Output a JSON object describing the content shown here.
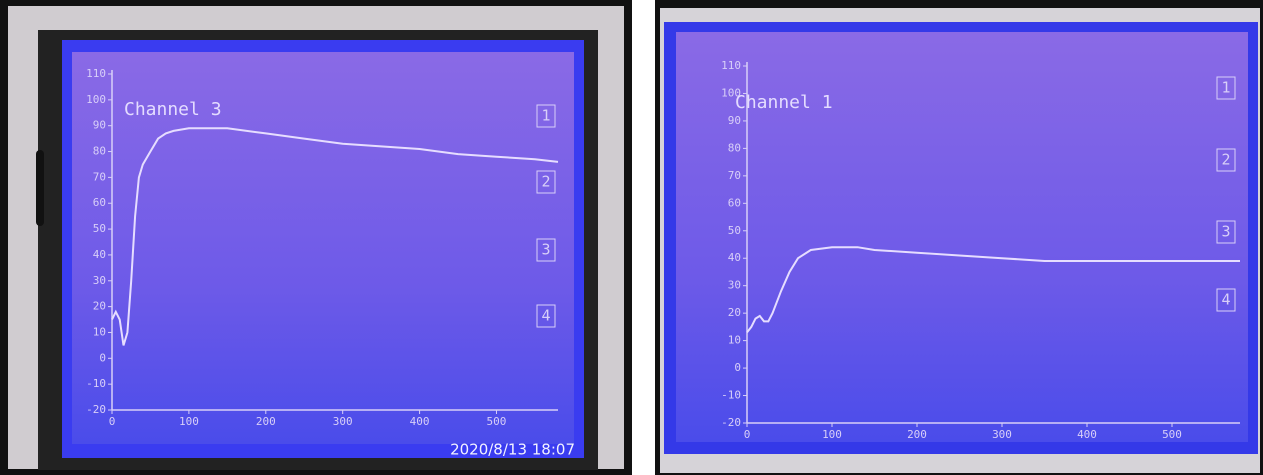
{
  "chart_data": [
    {
      "type": "line",
      "title": "Channel 3",
      "color": "#e6ddff",
      "x": [
        0,
        5,
        10,
        15,
        20,
        25,
        30,
        35,
        40,
        50,
        60,
        70,
        80,
        100,
        120,
        150,
        200,
        250,
        300,
        350,
        400,
        450,
        500,
        550,
        580
      ],
      "values": [
        15,
        18,
        15,
        5,
        10,
        30,
        55,
        70,
        75,
        80,
        85,
        87,
        88,
        89,
        89,
        89,
        87,
        85,
        83,
        82,
        81,
        79,
        78,
        77,
        76
      ],
      "xlim": [
        0,
        580
      ],
      "xticks": [
        0,
        100,
        200,
        300,
        400,
        500
      ],
      "ylim": [
        -20,
        110
      ],
      "yticks": [
        -20,
        -10,
        0,
        10,
        20,
        30,
        40,
        50,
        60,
        70,
        80,
        90,
        100,
        110
      ],
      "buttons": [
        "1",
        "2",
        "3",
        "4"
      ],
      "timestamp": "2020/8/13 18:07"
    },
    {
      "type": "line",
      "title": "Channel 1",
      "color": "#e6ddff",
      "x": [
        0,
        5,
        10,
        15,
        20,
        25,
        30,
        40,
        50,
        60,
        75,
        100,
        130,
        150,
        200,
        250,
        300,
        350,
        400,
        450,
        500,
        550,
        580
      ],
      "values": [
        13,
        15,
        18,
        19,
        17,
        17,
        20,
        28,
        35,
        40,
        43,
        44,
        44,
        43,
        42,
        41,
        40,
        39,
        39,
        39,
        39,
        39,
        39
      ],
      "xlim": [
        0,
        580
      ],
      "xticks": [
        0,
        100,
        200,
        300,
        400,
        500
      ],
      "ylim": [
        -20,
        110
      ],
      "yticks": [
        -20,
        -10,
        0,
        10,
        20,
        30,
        40,
        50,
        60,
        70,
        80,
        90,
        100,
        110
      ],
      "buttons": [
        "1",
        "2",
        "3",
        "4"
      ]
    }
  ]
}
